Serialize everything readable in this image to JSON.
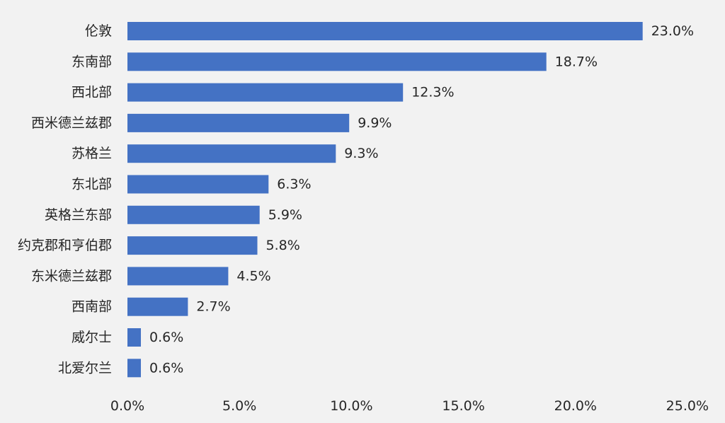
{
  "chart_data": {
    "type": "bar",
    "orientation": "horizontal",
    "categories": [
      "伦敦",
      "东南部",
      "西北部",
      "西米德兰兹郡",
      "苏格兰",
      "东北部",
      "英格兰东部",
      "约克郡和亨伯郡",
      "东米德兰兹郡",
      "西南部",
      "威尔士",
      "北爱尔兰"
    ],
    "values": [
      23.0,
      18.7,
      12.3,
      9.9,
      9.3,
      6.3,
      5.9,
      5.8,
      4.5,
      2.7,
      0.6,
      0.6
    ],
    "value_labels": [
      "23.0%",
      "18.7%",
      "12.3%",
      "9.9%",
      "9.3%",
      "6.3%",
      "5.9%",
      "5.8%",
      "4.5%",
      "2.7%",
      "0.6%",
      "0.6%"
    ],
    "xlim": [
      0,
      25
    ],
    "x_ticks": [
      0,
      5,
      10,
      15,
      20,
      25
    ],
    "x_tick_labels": [
      "0.0%",
      "5.0%",
      "10.0%",
      "15.0%",
      "20.0%",
      "25.0%"
    ],
    "title": "",
    "xlabel": "",
    "ylabel": "",
    "grid": false,
    "bar_color": "#4472c4",
    "background_color": "#f2f2f2",
    "text_color": "#262626"
  }
}
